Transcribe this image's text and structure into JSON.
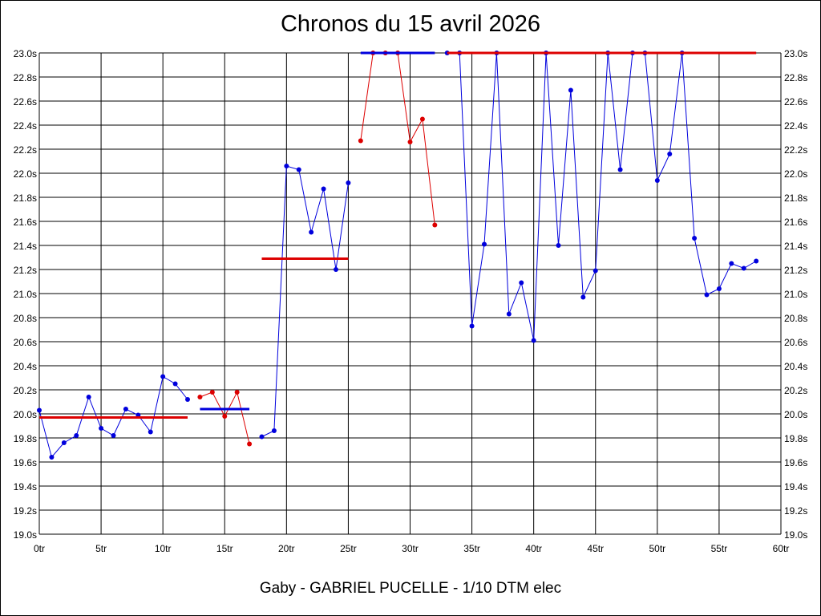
{
  "chart_data": {
    "type": "line",
    "title": "Chronos du 15 avril 2026",
    "footer": "Gaby - GABRIEL PUCELLE - 1/10 DTM elec",
    "xlim": [
      0,
      60
    ],
    "ylim": [
      19.0,
      23.0
    ],
    "x_ticks": [
      {
        "value": 0,
        "label": "0tr"
      },
      {
        "value": 5,
        "label": "5tr"
      },
      {
        "value": 10,
        "label": "10tr"
      },
      {
        "value": 15,
        "label": "15tr"
      },
      {
        "value": 20,
        "label": "20tr"
      },
      {
        "value": 25,
        "label": "25tr"
      },
      {
        "value": 30,
        "label": "30tr"
      },
      {
        "value": 35,
        "label": "35tr"
      },
      {
        "value": 40,
        "label": "40tr"
      },
      {
        "value": 45,
        "label": "45tr"
      },
      {
        "value": 50,
        "label": "50tr"
      },
      {
        "value": 55,
        "label": "55tr"
      },
      {
        "value": 60,
        "label": "60tr"
      }
    ],
    "y_ticks": [
      {
        "value": 19.0,
        "label": "19.0s"
      },
      {
        "value": 19.2,
        "label": "19.2s"
      },
      {
        "value": 19.4,
        "label": "19.4s"
      },
      {
        "value": 19.6,
        "label": "19.6s"
      },
      {
        "value": 19.8,
        "label": "19.8s"
      },
      {
        "value": 20.0,
        "label": "20.0s"
      },
      {
        "value": 20.2,
        "label": "20.2s"
      },
      {
        "value": 20.4,
        "label": "20.4s"
      },
      {
        "value": 20.6,
        "label": "20.6s"
      },
      {
        "value": 20.8,
        "label": "20.8s"
      },
      {
        "value": 21.0,
        "label": "21.0s"
      },
      {
        "value": 21.2,
        "label": "21.2s"
      },
      {
        "value": 21.4,
        "label": "21.4s"
      },
      {
        "value": 21.6,
        "label": "21.6s"
      },
      {
        "value": 21.8,
        "label": "21.8s"
      },
      {
        "value": 22.0,
        "label": "22.0s"
      },
      {
        "value": 22.2,
        "label": "22.2s"
      },
      {
        "value": 22.4,
        "label": "22.4s"
      },
      {
        "value": 22.6,
        "label": "22.6s"
      },
      {
        "value": 22.8,
        "label": "22.8s"
      },
      {
        "value": 23.0,
        "label": "23.0s"
      }
    ],
    "grid": true,
    "colors": {
      "blue": "#0000dd",
      "red": "#dd0000",
      "grid": "#000000"
    },
    "series": [
      {
        "color": "#0000dd",
        "x": [
          0,
          1,
          2,
          3,
          4,
          5,
          6,
          7,
          8,
          9,
          10,
          11,
          12
        ],
        "y": [
          20.03,
          19.64,
          19.76,
          19.82,
          20.14,
          19.88,
          19.82,
          20.04,
          19.99,
          19.85,
          20.31,
          20.25,
          20.12
        ]
      },
      {
        "color": "#dd0000",
        "x": [
          13,
          14,
          15,
          16,
          17
        ],
        "y": [
          20.14,
          20.18,
          19.98,
          20.18,
          19.75
        ]
      },
      {
        "color": "#0000dd",
        "x": [
          18,
          19,
          20,
          21,
          22,
          23,
          24,
          25
        ],
        "y": [
          19.81,
          19.86,
          22.06,
          22.03,
          21.51,
          21.87,
          21.2,
          21.92
        ]
      },
      {
        "color": "#dd0000",
        "x": [
          26,
          27,
          28,
          29,
          30,
          31,
          32
        ],
        "y": [
          22.27,
          23.0,
          23.0,
          23.0,
          22.26,
          22.45,
          21.57
        ]
      },
      {
        "color": "#0000dd",
        "x": [
          33,
          34,
          35,
          36,
          37,
          38,
          39,
          40,
          41,
          42,
          43,
          44,
          45,
          46,
          47,
          48,
          49,
          50,
          51,
          52,
          53,
          54,
          55,
          56,
          57,
          58
        ],
        "y": [
          23.0,
          23.0,
          20.73,
          21.41,
          23.0,
          20.83,
          21.09,
          20.61,
          23.0,
          21.4,
          22.69,
          20.97,
          21.19,
          23.0,
          22.03,
          23.0,
          23.0,
          21.94,
          22.16,
          23.0,
          21.46,
          20.99,
          21.04,
          21.25,
          21.21,
          21.27
        ]
      }
    ],
    "averages": [
      {
        "color": "#dd0000",
        "x_start": 0,
        "x_end": 12,
        "y": 19.97
      },
      {
        "color": "#0000dd",
        "x_start": 13,
        "x_end": 17,
        "y": 20.04
      },
      {
        "color": "#dd0000",
        "x_start": 18,
        "x_end": 25,
        "y": 21.29
      },
      {
        "color": "#0000dd",
        "x_start": 26,
        "x_end": 32,
        "y": 23.0
      },
      {
        "color": "#dd0000",
        "x_start": 33,
        "x_end": 58,
        "y": 23.0
      }
    ]
  }
}
